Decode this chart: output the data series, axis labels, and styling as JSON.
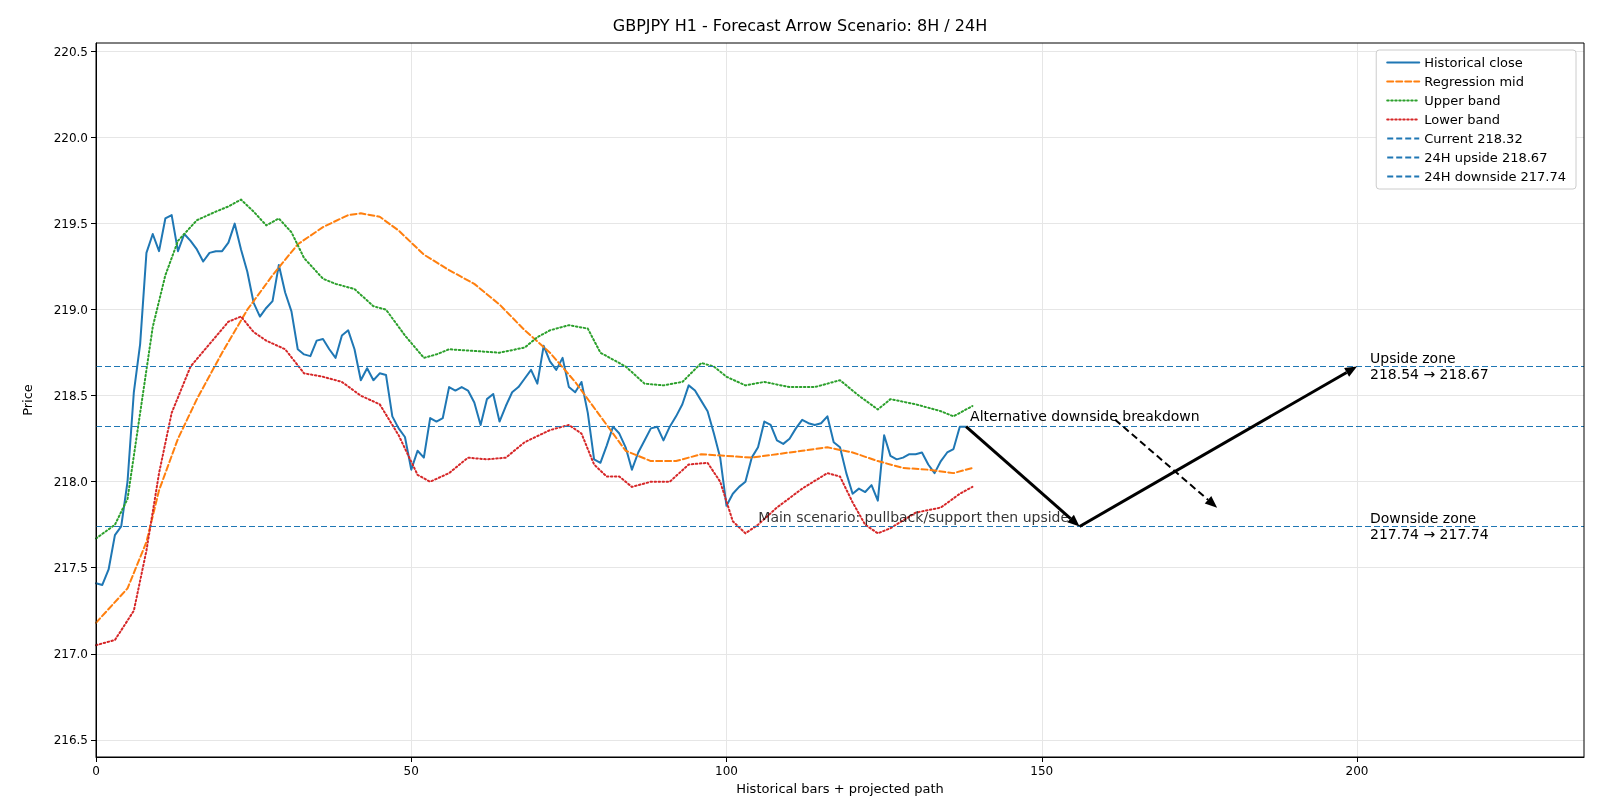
{
  "chart_data": {
    "type": "line",
    "title": "GBPJPY H1 - Forecast Arrow Scenario: 8H / 24H",
    "xlabel": "Historical bars + projected path",
    "ylabel": "Price",
    "xlim": [
      0,
      236
    ],
    "xticks": [
      0,
      50,
      100,
      150,
      200
    ],
    "ylim": [
      216.4,
      220.55
    ],
    "yticks": [
      216.5,
      {
        "value": 217,
        "label": "217.0"
      },
      217.5,
      {
        "value": 218,
        "label": "218.0"
      },
      218.5,
      {
        "value": 219,
        "label": "219.0"
      },
      219.5,
      {
        "value": 220,
        "label": "220.0"
      },
      220.5
    ],
    "grid": true,
    "legend": "top right",
    "marker": "none",
    "series": [
      {
        "name": "Historical close",
        "color": "#1f77b4",
        "line_style": "solid",
        "x": [
          0,
          1,
          2,
          3,
          4,
          5,
          6,
          7,
          8,
          9,
          10,
          11,
          12,
          13,
          14,
          15,
          16,
          17,
          18,
          19,
          20,
          21,
          22,
          23,
          24,
          25,
          26,
          27,
          28,
          29,
          30,
          31,
          32,
          33,
          34,
          35,
          36,
          37,
          38,
          39,
          40,
          41,
          42,
          43,
          44,
          45,
          46,
          47,
          48,
          49,
          50,
          51,
          52,
          53,
          54,
          55,
          56,
          57,
          58,
          59,
          60,
          61,
          62,
          63,
          64,
          65,
          66,
          67,
          68,
          69,
          70,
          71,
          72,
          73,
          74,
          75,
          76,
          77,
          78,
          79,
          80,
          81,
          82,
          83,
          84,
          85,
          86,
          87,
          88,
          89,
          90,
          91,
          92,
          93,
          94,
          95,
          96,
          97,
          98,
          99,
          100,
          101,
          102,
          103,
          104,
          105,
          106,
          107,
          108,
          109,
          110,
          111,
          112,
          113,
          114,
          115,
          116,
          117,
          118,
          119,
          120,
          121,
          122,
          123,
          124,
          125,
          126,
          127,
          128,
          129,
          130,
          131,
          132,
          133,
          134,
          135,
          136,
          137,
          138
        ],
        "values": [
          217.41,
          217.4,
          217.49,
          217.69,
          217.74,
          218.0,
          218.52,
          218.8,
          219.33,
          219.44,
          219.34,
          219.53,
          219.55,
          219.34,
          219.44,
          219.4,
          219.35,
          219.28,
          219.33,
          219.34,
          219.34,
          219.39,
          219.5,
          219.35,
          219.22,
          219.04,
          218.96,
          219.01,
          219.05,
          219.26,
          219.1,
          218.99,
          218.77,
          218.74,
          218.73,
          218.82,
          218.83,
          218.77,
          218.72,
          218.85,
          218.88,
          218.77,
          218.59,
          218.66,
          218.59,
          218.63,
          218.62,
          218.38,
          218.31,
          218.26,
          218.07,
          218.18,
          218.14,
          218.37,
          218.35,
          218.37,
          218.55,
          218.53,
          218.55,
          218.53,
          218.46,
          218.33,
          218.48,
          218.51,
          218.35,
          218.44,
          218.52,
          218.55,
          218.6,
          218.65,
          218.57,
          218.79,
          218.7,
          218.65,
          218.72,
          218.55,
          218.52,
          218.58,
          218.4,
          218.13,
          218.11,
          218.21,
          218.32,
          218.28,
          218.2,
          218.07,
          218.17,
          218.24,
          218.31,
          218.32,
          218.24,
          218.32,
          218.38,
          218.45,
          218.56,
          218.53,
          218.47,
          218.41,
          218.28,
          218.14,
          217.86,
          217.93,
          217.97,
          218.0,
          218.14,
          218.2,
          218.35,
          218.33,
          218.24,
          218.22,
          218.25,
          218.31,
          218.36,
          218.34,
          218.33,
          218.34,
          218.38,
          218.23,
          218.2,
          218.05,
          217.93,
          217.96,
          217.94,
          217.98,
          217.89,
          218.27,
          218.15,
          218.13,
          218.14,
          218.16,
          218.16,
          218.17,
          218.1,
          218.05,
          218.12,
          218.17,
          218.19,
          218.32,
          218.32
        ]
      },
      {
        "name": "Regression mid",
        "color": "#ff7f0e",
        "line_style": "dashed",
        "x": [
          0,
          5,
          8,
          10,
          13,
          16,
          20,
          24,
          28,
          32,
          36,
          40,
          42,
          45,
          48,
          52,
          56,
          60,
          64,
          68,
          72,
          76,
          80,
          84,
          88,
          92,
          96,
          100,
          104,
          108,
          112,
          116,
          120,
          124,
          128,
          132,
          136,
          139
        ],
        "values": [
          217.18,
          217.38,
          217.65,
          217.95,
          218.25,
          218.48,
          218.75,
          219.0,
          219.2,
          219.38,
          219.48,
          219.55,
          219.56,
          219.54,
          219.46,
          219.32,
          219.23,
          219.15,
          219.03,
          218.88,
          218.75,
          218.58,
          218.38,
          218.18,
          218.12,
          218.12,
          218.16,
          218.15,
          218.14,
          218.16,
          218.18,
          218.2,
          218.17,
          218.12,
          218.08,
          218.07,
          218.05,
          218.08
        ]
      },
      {
        "name": "Upper band",
        "color": "#2ca02c",
        "line_style": "dotted",
        "x": [
          0,
          3,
          5,
          7,
          9,
          11,
          13,
          16,
          19,
          21,
          23,
          25,
          27,
          29,
          31,
          33,
          36,
          38,
          41,
          44,
          46,
          49,
          52,
          54,
          56,
          60,
          64,
          68,
          70,
          72,
          75,
          78,
          80,
          84,
          87,
          90,
          93,
          96,
          98,
          100,
          103,
          106,
          110,
          114,
          118,
          121,
          124,
          126,
          130,
          134,
          136,
          139
        ],
        "values": [
          217.67,
          217.75,
          217.9,
          218.4,
          218.9,
          219.2,
          219.4,
          219.52,
          219.57,
          219.6,
          219.64,
          219.57,
          219.49,
          219.53,
          219.45,
          219.3,
          219.18,
          219.15,
          219.12,
          219.02,
          219.0,
          218.85,
          218.72,
          218.74,
          218.77,
          218.76,
          218.75,
          218.78,
          218.84,
          218.88,
          218.91,
          218.89,
          218.75,
          218.67,
          218.57,
          218.56,
          218.58,
          218.69,
          218.67,
          218.61,
          218.56,
          218.58,
          218.55,
          218.55,
          218.59,
          218.5,
          218.42,
          218.48,
          218.45,
          218.41,
          218.38,
          218.44
        ]
      },
      {
        "name": "Lower band",
        "color": "#d62728",
        "line_style": "dotted",
        "x": [
          0,
          3,
          6,
          8,
          10,
          12,
          15,
          18,
          21,
          23,
          25,
          27,
          30,
          33,
          36,
          39,
          42,
          45,
          48,
          51,
          53,
          56,
          59,
          62,
          65,
          68,
          72,
          75,
          77,
          79,
          81,
          83,
          85,
          88,
          91,
          94,
          97,
          99,
          101,
          103,
          105,
          108,
          112,
          116,
          118,
          120,
          122,
          124,
          126,
          130,
          134,
          137,
          139
        ],
        "values": [
          217.05,
          217.08,
          217.25,
          217.6,
          218.05,
          218.4,
          218.67,
          218.8,
          218.93,
          218.96,
          218.87,
          218.82,
          218.77,
          218.63,
          218.61,
          218.58,
          218.5,
          218.45,
          218.27,
          218.04,
          218.0,
          218.05,
          218.14,
          218.13,
          218.14,
          218.23,
          218.3,
          218.33,
          218.28,
          218.1,
          218.03,
          218.03,
          217.97,
          218.0,
          218.0,
          218.1,
          218.11,
          218.0,
          217.77,
          217.7,
          217.75,
          217.85,
          217.96,
          218.05,
          218.03,
          217.88,
          217.75,
          217.7,
          217.73,
          217.82,
          217.85,
          217.93,
          217.97
        ]
      }
    ],
    "ref_lines": [
      {
        "axis": "y",
        "value": 218.32,
        "label": "Current 218.32",
        "color": "#1f77b4",
        "line_style": "dashed"
      },
      {
        "axis": "y",
        "value": 218.67,
        "label": "24H upside 218.67",
        "color": "#1f77b4",
        "line_style": "dashed"
      },
      {
        "axis": "y",
        "value": 217.74,
        "label": "24H downside 217.74",
        "color": "#1f77b4",
        "line_style": "dashed"
      }
    ],
    "annotations": [
      "Alternative downside breakdown",
      {
        "text": "Main scenario: pullback/support then upside",
        "x": 156,
        "y": 217.74
      },
      "Upside zone\n218.54 → 218.67",
      "Downside zone\n217.74 → 217.74"
    ]
  }
}
